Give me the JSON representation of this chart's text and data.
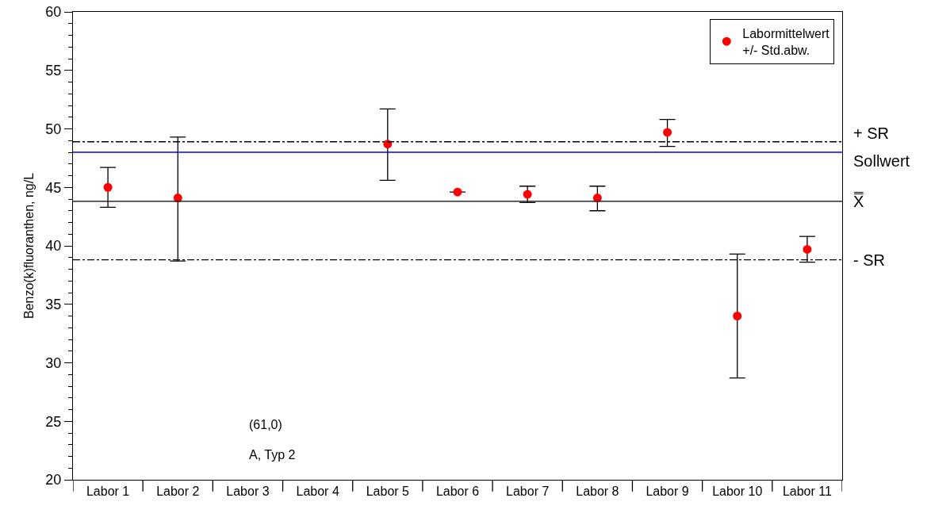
{
  "chart_data": {
    "type": "scatter",
    "ylabel": "Benzo(k)fluoranthen, ng/L",
    "categories": [
      "Labor 1",
      "Labor 2",
      "Labor 3",
      "Labor 4",
      "Labor 5",
      "Labor 6",
      "Labor 7",
      "Labor 8",
      "Labor 9",
      "Labor 10",
      "Labor 11"
    ],
    "series": [
      {
        "name": "Labormittelwert\n+/- Std.abw.",
        "color": "#ff0000",
        "values": [
          45.0,
          44.1,
          null,
          null,
          48.7,
          44.6,
          44.4,
          44.1,
          49.7,
          34.0,
          39.7
        ],
        "errors": [
          [
            43.3,
            46.7
          ],
          [
            38.7,
            49.3
          ],
          null,
          null,
          [
            45.6,
            51.7
          ],
          [
            44.6,
            44.6
          ],
          [
            43.7,
            45.1
          ],
          [
            43.0,
            45.1
          ],
          [
            48.5,
            50.8
          ],
          [
            28.7,
            39.3
          ],
          [
            38.6,
            40.8
          ]
        ]
      }
    ],
    "ylim": [
      20,
      60
    ],
    "yticks": [
      20,
      25,
      30,
      35,
      40,
      45,
      50,
      55,
      60
    ],
    "grid": false,
    "legend": "top right",
    "marker": "circle",
    "ref_lines": [
      {
        "axis": "y",
        "value": 48.9,
        "label": "+ SR",
        "color": "#000000",
        "line_style": "dashed"
      },
      {
        "axis": "y",
        "value": 48.0,
        "label": "Sollwert",
        "color": "#0000ff",
        "line_style": "solid"
      },
      {
        "axis": "y",
        "value": 43.8,
        "label": "X̿",
        "color": "#000000",
        "line_style": "solid"
      },
      {
        "axis": "y",
        "value": 38.8,
        "label": "- SR",
        "color": "#000000",
        "line_style": "dashed"
      }
    ],
    "annotations": [
      "(61,0)",
      "A, Typ 2"
    ]
  }
}
